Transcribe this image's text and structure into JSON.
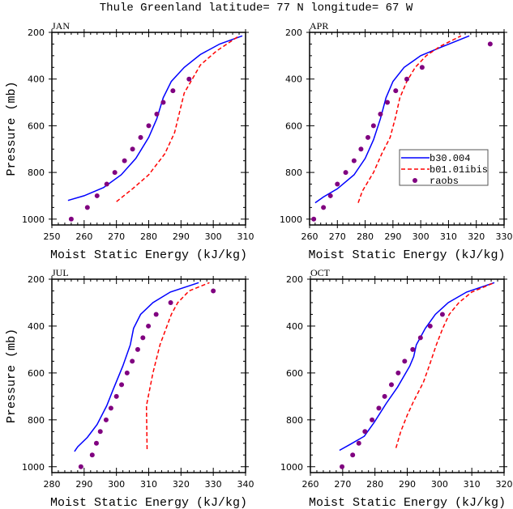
{
  "title": "Thule Greenland  latitude= 77 N longitude= 67 W",
  "colors": {
    "b30.004": "#0000ff",
    "b01.01ibis": "#ff0000",
    "raobs": "#800080"
  },
  "legend": {
    "panel": "APR",
    "placement": "center-right",
    "entries": [
      "b30.004",
      "b01.01ibis",
      "raobs"
    ]
  },
  "chart_data": [
    {
      "type": "line",
      "label": "JAN",
      "xlabel": "Moist Static Energy (kJ/kg)",
      "ylabel": "Pressure (mb)",
      "xlim": [
        250,
        310
      ],
      "ylim": [
        200,
        1025
      ],
      "y_inverted": true,
      "xticks": [
        250,
        260,
        270,
        280,
        290,
        300,
        310
      ],
      "yticks": [
        200,
        400,
        600,
        800,
        1000
      ],
      "series": [
        {
          "name": "b30.004",
          "style": "solid",
          "points": [
            [
              255,
              920
            ],
            [
              260,
              900
            ],
            [
              266,
              865
            ],
            [
              271.5,
              810
            ],
            [
              276,
              740
            ],
            [
              280,
              650
            ],
            [
              282.5,
              570
            ],
            [
              284.5,
              480
            ],
            [
              287,
              410
            ],
            [
              291,
              350
            ],
            [
              296,
              295
            ],
            [
              302,
              250
            ],
            [
              309,
              215
            ]
          ]
        },
        {
          "name": "b01.01ibis",
          "style": "dashed",
          "points": [
            [
              270,
              925
            ],
            [
              275,
              870
            ],
            [
              280,
              810
            ],
            [
              285,
              720
            ],
            [
              288,
              630
            ],
            [
              291,
              460
            ],
            [
              296,
              340
            ],
            [
              301,
              280
            ],
            [
              308,
              215
            ]
          ]
        },
        {
          "name": "raobs",
          "style": "markers",
          "points": [
            [
              256,
              1000
            ],
            [
              261,
              950
            ],
            [
              264,
              900
            ],
            [
              267,
              850
            ],
            [
              269.5,
              800
            ],
            [
              272.5,
              750
            ],
            [
              275,
              700
            ],
            [
              277.5,
              650
            ],
            [
              280,
              600
            ],
            [
              282.5,
              550
            ],
            [
              284.5,
              500
            ],
            [
              287.5,
              450
            ],
            [
              292.5,
              400
            ]
          ]
        }
      ]
    },
    {
      "type": "line",
      "label": "APR",
      "xlabel": "Moist Static Energy (kJ/kg)",
      "ylabel": "",
      "xlim": [
        260,
        330
      ],
      "ylim": [
        200,
        1025
      ],
      "y_inverted": true,
      "xticks": [
        260,
        270,
        280,
        290,
        300,
        310,
        320,
        330
      ],
      "yticks": [
        200,
        400,
        600,
        800,
        1000
      ],
      "series": [
        {
          "name": "b30.004",
          "style": "solid",
          "points": [
            [
              262,
              930
            ],
            [
              265,
              905
            ],
            [
              270,
              870
            ],
            [
              276,
              810
            ],
            [
              280,
              740
            ],
            [
              283,
              660
            ],
            [
              285.5,
              570
            ],
            [
              287.5,
              480
            ],
            [
              290,
              410
            ],
            [
              294,
              350
            ],
            [
              300,
              300
            ],
            [
              307,
              265
            ],
            [
              317.5,
              215
            ]
          ]
        },
        {
          "name": "b01.01ibis",
          "style": "dashed",
          "points": [
            [
              277.5,
              930
            ],
            [
              279,
              880
            ],
            [
              283,
              800
            ],
            [
              286,
              720
            ],
            [
              289,
              650
            ],
            [
              291,
              560
            ],
            [
              292.5,
              480
            ],
            [
              295,
              410
            ],
            [
              298,
              350
            ],
            [
              302,
              300
            ],
            [
              307,
              260
            ],
            [
              314.5,
              215
            ]
          ]
        },
        {
          "name": "raobs",
          "style": "markers",
          "points": [
            [
              261.5,
              1000
            ],
            [
              265,
              950
            ],
            [
              267.5,
              900
            ],
            [
              270,
              850
            ],
            [
              273,
              800
            ],
            [
              276,
              750
            ],
            [
              278.5,
              700
            ],
            [
              281,
              650
            ],
            [
              283,
              600
            ],
            [
              285.5,
              550
            ],
            [
              288,
              500
            ],
            [
              291,
              450
            ],
            [
              295,
              400
            ],
            [
              300.5,
              350
            ],
            [
              325,
              250
            ]
          ]
        }
      ]
    },
    {
      "type": "line",
      "label": "JUL",
      "xlabel": "Moist Static Energy (kJ/kg)",
      "ylabel": "Pressure (mb)",
      "xlim": [
        280,
        340
      ],
      "ylim": [
        200,
        1025
      ],
      "y_inverted": true,
      "xticks": [
        280,
        290,
        300,
        310,
        320,
        330,
        340
      ],
      "yticks": [
        200,
        400,
        600,
        800,
        1000
      ],
      "series": [
        {
          "name": "b30.004",
          "style": "solid",
          "points": [
            [
              287,
              935
            ],
            [
              288,
              915
            ],
            [
              291,
              875
            ],
            [
              294,
              820
            ],
            [
              297,
              740
            ],
            [
              299,
              670
            ],
            [
              302,
              570
            ],
            [
              304.3,
              480
            ],
            [
              305.3,
              410
            ],
            [
              307.5,
              350
            ],
            [
              311.3,
              300
            ],
            [
              316.7,
              255
            ],
            [
              325.5,
              215
            ]
          ]
        },
        {
          "name": "b01.01ibis",
          "style": "dashed",
          "points": [
            [
              309.5,
              925
            ],
            [
              309.3,
              740
            ],
            [
              311.3,
              600
            ],
            [
              313.5,
              480
            ],
            [
              317,
              350
            ],
            [
              319,
              300
            ],
            [
              322.5,
              250
            ],
            [
              328.8,
              215
            ]
          ]
        },
        {
          "name": "raobs",
          "style": "markers",
          "points": [
            [
              289,
              1000
            ],
            [
              292.5,
              950
            ],
            [
              293.8,
              900
            ],
            [
              295,
              850
            ],
            [
              296.8,
              800
            ],
            [
              298.3,
              750
            ],
            [
              300,
              700
            ],
            [
              301.6,
              650
            ],
            [
              303.3,
              600
            ],
            [
              304.9,
              550
            ],
            [
              306.6,
              500
            ],
            [
              308.2,
              450
            ],
            [
              309.9,
              400
            ],
            [
              312.3,
              350
            ],
            [
              316.8,
              300
            ],
            [
              330,
              250
            ]
          ]
        }
      ]
    },
    {
      "type": "line",
      "label": "OCT",
      "xlabel": "Moist Static Energy (kJ/kg)",
      "ylabel": "",
      "xlim": [
        260,
        320
      ],
      "ylim": [
        200,
        1025
      ],
      "y_inverted": true,
      "xticks": [
        260,
        270,
        280,
        290,
        300,
        310,
        320
      ],
      "yticks": [
        200,
        400,
        600,
        800,
        1000
      ],
      "series": [
        {
          "name": "b30.004",
          "style": "solid",
          "points": [
            [
              269,
              930
            ],
            [
              272.3,
              905
            ],
            [
              276.7,
              870
            ],
            [
              279.8,
              810
            ],
            [
              283.5,
              730
            ],
            [
              287,
              660
            ],
            [
              290.8,
              570
            ],
            [
              292,
              530
            ],
            [
              292.8,
              480
            ],
            [
              295.6,
              410
            ],
            [
              298.7,
              350
            ],
            [
              302.7,
              300
            ],
            [
              308.4,
              255
            ],
            [
              317,
              215
            ]
          ]
        },
        {
          "name": "b01.01ibis",
          "style": "dashed",
          "points": [
            [
              286.5,
              920
            ],
            [
              288,
              850
            ],
            [
              290,
              780
            ],
            [
              292,
              720
            ],
            [
              295,
              640
            ],
            [
              296.8,
              570
            ],
            [
              299,
              480
            ],
            [
              301,
              410
            ],
            [
              303,
              350
            ],
            [
              306,
              300
            ],
            [
              310,
              255
            ],
            [
              317,
              215
            ]
          ]
        },
        {
          "name": "raobs",
          "style": "markers",
          "points": [
            [
              269.8,
              1000
            ],
            [
              273.1,
              950
            ],
            [
              275,
              900
            ],
            [
              276.9,
              850
            ],
            [
              279.1,
              800
            ],
            [
              281.2,
              750
            ],
            [
              283,
              700
            ],
            [
              285.1,
              650
            ],
            [
              287.2,
              600
            ],
            [
              289.2,
              550
            ],
            [
              291.7,
              500
            ],
            [
              294.1,
              450
            ],
            [
              297.1,
              400
            ],
            [
              300.9,
              350
            ]
          ]
        }
      ]
    }
  ]
}
